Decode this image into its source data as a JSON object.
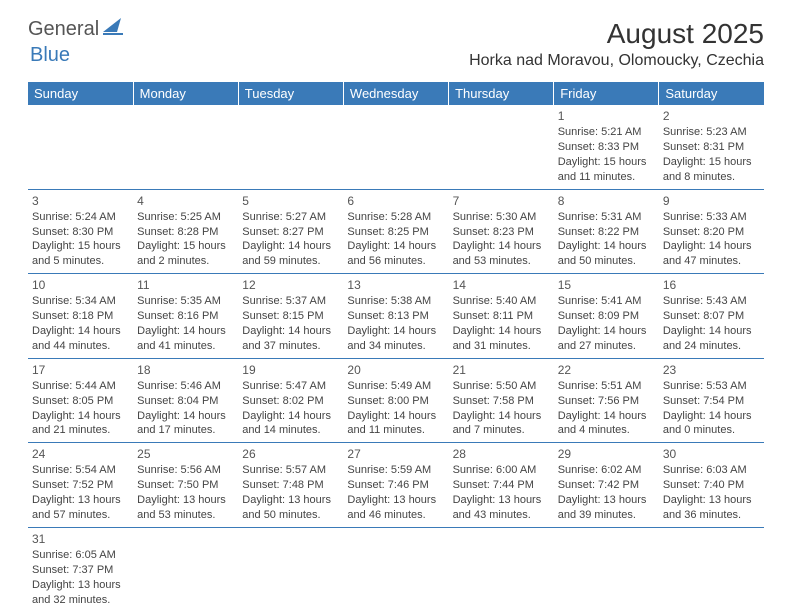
{
  "logo": {
    "part1": "General",
    "part2": "Blue"
  },
  "title": "August 2025",
  "location": "Horka nad Moravou, Olomoucky, Czechia",
  "colors": {
    "header_bg": "#3a7ab8",
    "header_text": "#ffffff",
    "border": "#3a7ab8",
    "body_text": "#444444"
  },
  "day_headers": [
    "Sunday",
    "Monday",
    "Tuesday",
    "Wednesday",
    "Thursday",
    "Friday",
    "Saturday"
  ],
  "weeks": [
    [
      null,
      null,
      null,
      null,
      null,
      {
        "n": "1",
        "sr": "5:21 AM",
        "ss": "8:33 PM",
        "dl": "15 hours and 11 minutes."
      },
      {
        "n": "2",
        "sr": "5:23 AM",
        "ss": "8:31 PM",
        "dl": "15 hours and 8 minutes."
      }
    ],
    [
      {
        "n": "3",
        "sr": "5:24 AM",
        "ss": "8:30 PM",
        "dl": "15 hours and 5 minutes."
      },
      {
        "n": "4",
        "sr": "5:25 AM",
        "ss": "8:28 PM",
        "dl": "15 hours and 2 minutes."
      },
      {
        "n": "5",
        "sr": "5:27 AM",
        "ss": "8:27 PM",
        "dl": "14 hours and 59 minutes."
      },
      {
        "n": "6",
        "sr": "5:28 AM",
        "ss": "8:25 PM",
        "dl": "14 hours and 56 minutes."
      },
      {
        "n": "7",
        "sr": "5:30 AM",
        "ss": "8:23 PM",
        "dl": "14 hours and 53 minutes."
      },
      {
        "n": "8",
        "sr": "5:31 AM",
        "ss": "8:22 PM",
        "dl": "14 hours and 50 minutes."
      },
      {
        "n": "9",
        "sr": "5:33 AM",
        "ss": "8:20 PM",
        "dl": "14 hours and 47 minutes."
      }
    ],
    [
      {
        "n": "10",
        "sr": "5:34 AM",
        "ss": "8:18 PM",
        "dl": "14 hours and 44 minutes."
      },
      {
        "n": "11",
        "sr": "5:35 AM",
        "ss": "8:16 PM",
        "dl": "14 hours and 41 minutes."
      },
      {
        "n": "12",
        "sr": "5:37 AM",
        "ss": "8:15 PM",
        "dl": "14 hours and 37 minutes."
      },
      {
        "n": "13",
        "sr": "5:38 AM",
        "ss": "8:13 PM",
        "dl": "14 hours and 34 minutes."
      },
      {
        "n": "14",
        "sr": "5:40 AM",
        "ss": "8:11 PM",
        "dl": "14 hours and 31 minutes."
      },
      {
        "n": "15",
        "sr": "5:41 AM",
        "ss": "8:09 PM",
        "dl": "14 hours and 27 minutes."
      },
      {
        "n": "16",
        "sr": "5:43 AM",
        "ss": "8:07 PM",
        "dl": "14 hours and 24 minutes."
      }
    ],
    [
      {
        "n": "17",
        "sr": "5:44 AM",
        "ss": "8:05 PM",
        "dl": "14 hours and 21 minutes."
      },
      {
        "n": "18",
        "sr": "5:46 AM",
        "ss": "8:04 PM",
        "dl": "14 hours and 17 minutes."
      },
      {
        "n": "19",
        "sr": "5:47 AM",
        "ss": "8:02 PM",
        "dl": "14 hours and 14 minutes."
      },
      {
        "n": "20",
        "sr": "5:49 AM",
        "ss": "8:00 PM",
        "dl": "14 hours and 11 minutes."
      },
      {
        "n": "21",
        "sr": "5:50 AM",
        "ss": "7:58 PM",
        "dl": "14 hours and 7 minutes."
      },
      {
        "n": "22",
        "sr": "5:51 AM",
        "ss": "7:56 PM",
        "dl": "14 hours and 4 minutes."
      },
      {
        "n": "23",
        "sr": "5:53 AM",
        "ss": "7:54 PM",
        "dl": "14 hours and 0 minutes."
      }
    ],
    [
      {
        "n": "24",
        "sr": "5:54 AM",
        "ss": "7:52 PM",
        "dl": "13 hours and 57 minutes."
      },
      {
        "n": "25",
        "sr": "5:56 AM",
        "ss": "7:50 PM",
        "dl": "13 hours and 53 minutes."
      },
      {
        "n": "26",
        "sr": "5:57 AM",
        "ss": "7:48 PM",
        "dl": "13 hours and 50 minutes."
      },
      {
        "n": "27",
        "sr": "5:59 AM",
        "ss": "7:46 PM",
        "dl": "13 hours and 46 minutes."
      },
      {
        "n": "28",
        "sr": "6:00 AM",
        "ss": "7:44 PM",
        "dl": "13 hours and 43 minutes."
      },
      {
        "n": "29",
        "sr": "6:02 AM",
        "ss": "7:42 PM",
        "dl": "13 hours and 39 minutes."
      },
      {
        "n": "30",
        "sr": "6:03 AM",
        "ss": "7:40 PM",
        "dl": "13 hours and 36 minutes."
      }
    ],
    [
      {
        "n": "31",
        "sr": "6:05 AM",
        "ss": "7:37 PM",
        "dl": "13 hours and 32 minutes."
      },
      null,
      null,
      null,
      null,
      null,
      null
    ]
  ],
  "labels": {
    "sunrise": "Sunrise:",
    "sunset": "Sunset:",
    "daylight": "Daylight:"
  }
}
